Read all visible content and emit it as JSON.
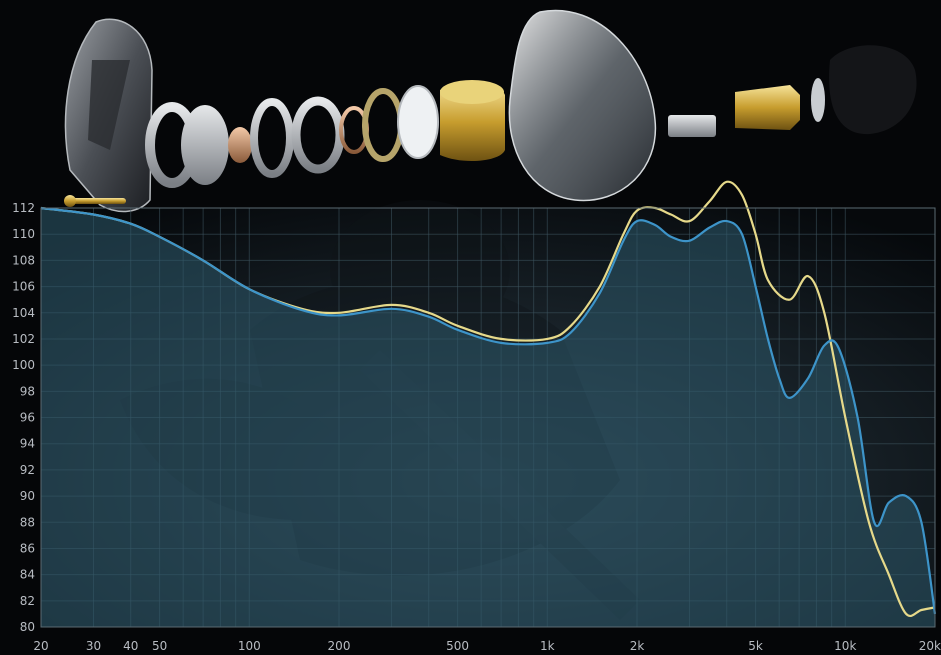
{
  "chart_data": {
    "type": "line",
    "title": "",
    "xlabel": "",
    "ylabel": "",
    "x_scale": "log",
    "xlim": [
      20,
      20000
    ],
    "ylim": [
      80,
      112
    ],
    "grid": true,
    "y_ticks": [
      80,
      82,
      84,
      86,
      88,
      90,
      92,
      94,
      96,
      98,
      100,
      102,
      104,
      106,
      108,
      110,
      112
    ],
    "x_ticks": [
      {
        "value": 20,
        "label": "20"
      },
      {
        "value": 30,
        "label": "30"
      },
      {
        "value": 40,
        "label": "40"
      },
      {
        "value": 50,
        "label": "50"
      },
      {
        "value": 100,
        "label": "100"
      },
      {
        "value": 200,
        "label": "200"
      },
      {
        "value": 500,
        "label": "500"
      },
      {
        "value": 1000,
        "label": "1k"
      },
      {
        "value": 2000,
        "label": "2k"
      },
      {
        "value": 5000,
        "label": "5k"
      },
      {
        "value": 10000,
        "label": "10k"
      },
      {
        "value": 20000,
        "label": "20k"
      }
    ],
    "series": [
      {
        "color": "#e6d98a",
        "points": [
          [
            20,
            112
          ],
          [
            30,
            111.5
          ],
          [
            40,
            110.8
          ],
          [
            50,
            109.8
          ],
          [
            70,
            108
          ],
          [
            100,
            105.8
          ],
          [
            150,
            104.3
          ],
          [
            200,
            104
          ],
          [
            300,
            104.6
          ],
          [
            400,
            104
          ],
          [
            500,
            103
          ],
          [
            700,
            102
          ],
          [
            1000,
            102
          ],
          [
            1200,
            103
          ],
          [
            1500,
            106
          ],
          [
            1800,
            110
          ],
          [
            2000,
            111.8
          ],
          [
            2300,
            112
          ],
          [
            2600,
            111.5
          ],
          [
            3000,
            111
          ],
          [
            3500,
            112.5
          ],
          [
            4000,
            114
          ],
          [
            4500,
            113
          ],
          [
            5000,
            110
          ],
          [
            5500,
            106.5
          ],
          [
            6500,
            105
          ],
          [
            7500,
            106.8
          ],
          [
            8500,
            104
          ],
          [
            10000,
            96
          ],
          [
            12000,
            88
          ],
          [
            14000,
            84
          ],
          [
            16000,
            81
          ],
          [
            18000,
            81.3
          ],
          [
            20000,
            81.5
          ]
        ]
      },
      {
        "color": "#3d94c9",
        "points": [
          [
            20,
            112
          ],
          [
            30,
            111.5
          ],
          [
            40,
            110.8
          ],
          [
            50,
            109.8
          ],
          [
            70,
            108
          ],
          [
            100,
            105.8
          ],
          [
            150,
            104.2
          ],
          [
            200,
            103.8
          ],
          [
            300,
            104.3
          ],
          [
            400,
            103.7
          ],
          [
            500,
            102.7
          ],
          [
            700,
            101.7
          ],
          [
            1000,
            101.7
          ],
          [
            1200,
            102.5
          ],
          [
            1500,
            105.5
          ],
          [
            1800,
            109.5
          ],
          [
            2000,
            111
          ],
          [
            2300,
            110.7
          ],
          [
            2600,
            109.8
          ],
          [
            3000,
            109.5
          ],
          [
            3500,
            110.5
          ],
          [
            4000,
            111
          ],
          [
            4500,
            110
          ],
          [
            5000,
            106
          ],
          [
            5500,
            102
          ],
          [
            6000,
            99
          ],
          [
            6500,
            97.5
          ],
          [
            7500,
            99
          ],
          [
            8500,
            101.5
          ],
          [
            9500,
            101.3
          ],
          [
            11000,
            96
          ],
          [
            12500,
            88
          ],
          [
            14000,
            89.5
          ],
          [
            16000,
            90
          ],
          [
            18000,
            88
          ],
          [
            20000,
            81
          ]
        ]
      }
    ]
  }
}
